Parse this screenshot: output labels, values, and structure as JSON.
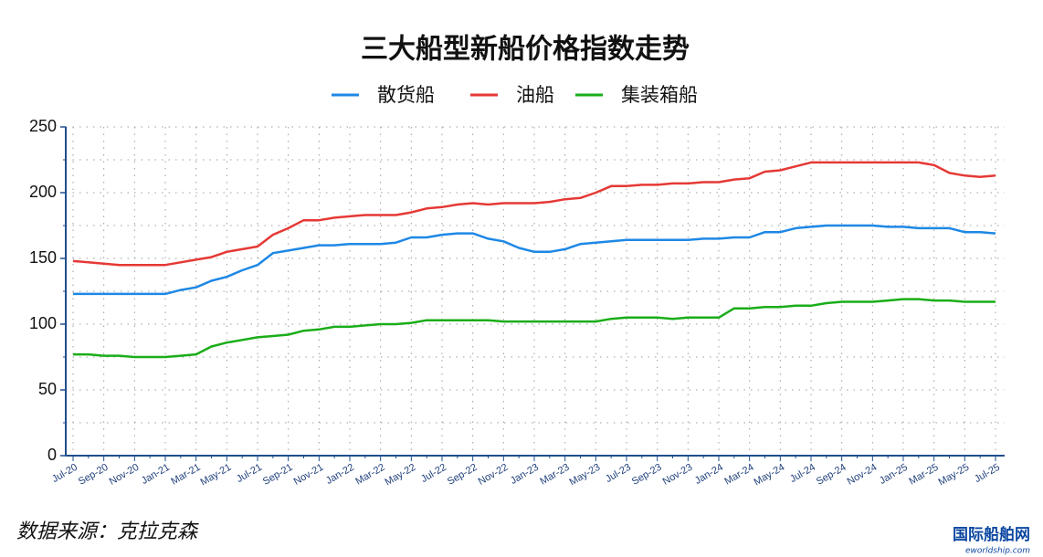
{
  "chart_data": {
    "type": "line",
    "title": "三大船型新船价格指数走势",
    "categories": [
      "Jul-20",
      null,
      "Sep-20",
      null,
      "Nov-20",
      null,
      "Jan-21",
      null,
      "Mar-21",
      null,
      "May-21",
      null,
      "Jul-21",
      null,
      "Sep-21",
      null,
      "Nov-21",
      null,
      "Jan-22",
      null,
      "Mar-22",
      null,
      "May-22",
      null,
      "Jul-22",
      null,
      "Sep-22",
      null,
      "Nov-22",
      null,
      "Jan-23",
      null,
      "Mar-23",
      null,
      "May-23",
      null,
      "Jul-23",
      null,
      "Sep-23",
      null,
      "Nov-23",
      null,
      "Jan-24",
      null,
      "Mar-24",
      null,
      "May-24",
      null,
      "Jul-24",
      null,
      "Sep-24",
      null,
      "Nov-24",
      null,
      "Jan-25",
      null,
      "Mar-25",
      null,
      "May-25",
      null,
      "Jul-25"
    ],
    "series": [
      {
        "name": "散货船",
        "color": "#1e88e5",
        "values": [
          123,
          123,
          123,
          123,
          123,
          123,
          123,
          126,
          128,
          133,
          136,
          141,
          145,
          154,
          156,
          158,
          160,
          160,
          161,
          161,
          161,
          162,
          166,
          166,
          168,
          169,
          169,
          165,
          163,
          158,
          155,
          155,
          157,
          161,
          162,
          163,
          164,
          164,
          164,
          164,
          164,
          165,
          165,
          166,
          166,
          170,
          170,
          173,
          174,
          175,
          175,
          175,
          175,
          174,
          174,
          173,
          173,
          173,
          170,
          170,
          169
        ]
      },
      {
        "name": "油船",
        "color": "#e53935",
        "values": [
          148,
          147,
          146,
          145,
          145,
          145,
          145,
          147,
          149,
          151,
          155,
          157,
          159,
          168,
          173,
          179,
          179,
          181,
          182,
          183,
          183,
          183,
          185,
          188,
          189,
          191,
          192,
          191,
          192,
          192,
          192,
          193,
          195,
          196,
          200,
          205,
          205,
          206,
          206,
          207,
          207,
          208,
          208,
          210,
          211,
          216,
          217,
          220,
          223,
          223,
          223,
          223,
          223,
          223,
          223,
          223,
          221,
          215,
          213,
          212,
          213
        ]
      },
      {
        "name": "集装箱船",
        "color": "#1aad19",
        "values": [
          77,
          77,
          76,
          76,
          75,
          75,
          75,
          76,
          77,
          83,
          86,
          88,
          90,
          91,
          92,
          95,
          96,
          98,
          98,
          99,
          100,
          100,
          101,
          103,
          103,
          103,
          103,
          103,
          102,
          102,
          102,
          102,
          102,
          102,
          102,
          104,
          105,
          105,
          105,
          104,
          105,
          105,
          105,
          112,
          112,
          113,
          113,
          114,
          114,
          116,
          117,
          117,
          117,
          118,
          119,
          119,
          118,
          118,
          117,
          117,
          117
        ]
      }
    ],
    "ylim": [
      0,
      250
    ],
    "yticks": [
      0,
      50,
      100,
      150,
      200,
      250
    ],
    "y_minor_ticks": [
      25,
      75,
      125,
      175,
      225
    ],
    "grid": true,
    "legend": "top",
    "source": "数据来源：克拉克森",
    "watermark": "国际船舶网",
    "watermark_url": "eworldship.com"
  }
}
